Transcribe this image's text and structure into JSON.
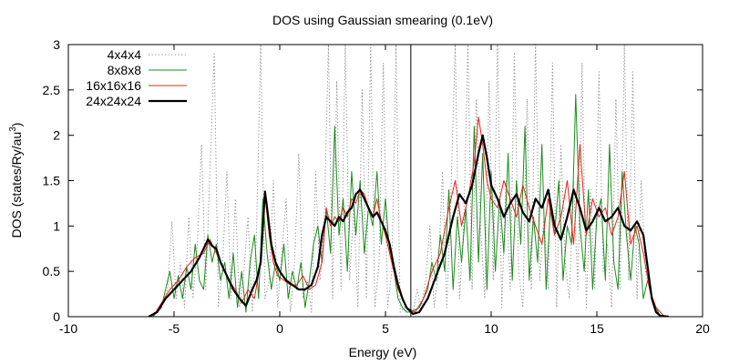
{
  "chart_data": {
    "type": "line",
    "title": "DOS using Gaussian smearing (0.1eV)",
    "xlabel": "Energy (eV)",
    "ylabel": "DOS (states/Ry/au",
    "ylabel_sup": "3",
    "ylabel_end": ")",
    "xlim": [
      -10,
      20
    ],
    "ylim": [
      0,
      3
    ],
    "xticks": [
      -10,
      -5,
      0,
      5,
      10,
      15,
      20
    ],
    "xtick_labels": [
      "-10",
      "-5",
      "0",
      "5",
      "10",
      "15",
      "20"
    ],
    "yticks": [
      0,
      0.5,
      1,
      1.5,
      2,
      2.5,
      3
    ],
    "ytick_labels": [
      "0",
      "0.5",
      "1",
      "1.5",
      "2",
      "2.5",
      "3"
    ],
    "grid": false,
    "legend_position": "top-left",
    "vertical_line_x": 6.2,
    "series": [
      {
        "name": "4x4x4",
        "color": "#888888",
        "style": "dotted",
        "x": [
          -6.2,
          -5.6,
          -5.3,
          -5.1,
          -4.9,
          -4.7,
          -4.5,
          -4.3,
          -4.1,
          -3.9,
          -3.7,
          -3.5,
          -3.3,
          -3.1,
          -2.9,
          -2.7,
          -2.5,
          -2.3,
          -2.1,
          -1.9,
          -1.7,
          -1.5,
          -1.3,
          -1.1,
          -0.9,
          -0.7,
          -0.5,
          -0.3,
          -0.1,
          0.1,
          0.3,
          0.5,
          0.7,
          0.9,
          1.1,
          1.3,
          1.5,
          1.7,
          1.9,
          2.1,
          2.3,
          2.5,
          2.7,
          2.9,
          3.1,
          3.3,
          3.5,
          3.7,
          3.9,
          4.1,
          4.3,
          4.5,
          4.7,
          4.9,
          5.1,
          5.3,
          5.5,
          5.7,
          5.9,
          6.1,
          6.3,
          6.5,
          6.7,
          6.9,
          7.1,
          7.3,
          7.5,
          7.7,
          7.9,
          8.1,
          8.3,
          8.5,
          8.7,
          8.9,
          9.1,
          9.3,
          9.5,
          9.7,
          9.9,
          10.1,
          10.3,
          10.5,
          10.7,
          10.9,
          11.1,
          11.3,
          11.5,
          11.7,
          11.9,
          12.1,
          12.3,
          12.5,
          12.7,
          12.9,
          13.1,
          13.3,
          13.5,
          13.7,
          13.9,
          14.1,
          14.3,
          14.5,
          14.7,
          14.9,
          15.1,
          15.3,
          15.5,
          15.7,
          15.9,
          16.1,
          16.3,
          16.5,
          16.7,
          16.9,
          17.1,
          17.3,
          17.5,
          17.7,
          18.0
        ],
        "y": [
          0,
          0.1,
          0.3,
          1.05,
          0.2,
          0.6,
          0.1,
          1.1,
          0.2,
          0.8,
          1.9,
          0.3,
          1.6,
          2.9,
          0.1,
          0.6,
          1.6,
          0.2,
          1.3,
          0.1,
          0.5,
          1.1,
          0.05,
          0.9,
          3.0,
          0.2,
          0.4,
          1.5,
          0.1,
          0.7,
          1.3,
          0.05,
          0.6,
          1.8,
          0.2,
          0.4,
          0.05,
          1.6,
          0.4,
          1.0,
          3.0,
          0.2,
          2.6,
          0.3,
          3.0,
          0.4,
          1.2,
          0.1,
          2.5,
          0.2,
          3.0,
          0.1,
          0.6,
          2.8,
          0.1,
          0.5,
          3.0,
          0.05,
          0.1,
          0.05,
          0.05,
          0.3,
          0.1,
          0.4,
          1.0,
          0.1,
          0.5,
          1.6,
          0.1,
          1.4,
          3.0,
          0.2,
          1.0,
          3.0,
          0.3,
          2.4,
          1.0,
          0.2,
          2.6,
          0.4,
          3.0,
          0.1,
          1.5,
          0.3,
          2.9,
          0.5,
          0.1,
          2.4,
          0.3,
          3.0,
          0.4,
          1.1,
          0.3,
          2.8,
          0.1,
          1.9,
          0.6,
          0.2,
          1.5,
          0.3,
          2.8,
          0.1,
          1.4,
          0.3,
          2.7,
          0.5,
          0.8,
          0.1,
          2.4,
          0.3,
          3.0,
          0.4,
          2.7,
          0.2,
          1.5,
          0.5,
          0.3,
          0.1,
          0
        ]
      },
      {
        "name": "8x8x8",
        "color": "#1e8a1e",
        "style": "solid",
        "x": [
          -6.0,
          -5.6,
          -5.4,
          -5.2,
          -5.0,
          -4.8,
          -4.6,
          -4.4,
          -4.2,
          -4.0,
          -3.8,
          -3.6,
          -3.4,
          -3.2,
          -3.0,
          -2.8,
          -2.6,
          -2.4,
          -2.2,
          -2.0,
          -1.8,
          -1.6,
          -1.4,
          -1.2,
          -1.0,
          -0.8,
          -0.6,
          -0.4,
          -0.2,
          0.0,
          0.2,
          0.4,
          0.6,
          0.8,
          1.0,
          1.2,
          1.4,
          1.6,
          1.8,
          2.0,
          2.2,
          2.4,
          2.6,
          2.8,
          3.0,
          3.2,
          3.4,
          3.6,
          3.8,
          4.0,
          4.2,
          4.4,
          4.6,
          4.8,
          5.0,
          5.2,
          5.4,
          5.6,
          5.8,
          6.0,
          6.2,
          6.6,
          7.0,
          7.2,
          7.4,
          7.6,
          7.8,
          8.0,
          8.2,
          8.4,
          8.6,
          8.8,
          9.0,
          9.2,
          9.4,
          9.6,
          9.8,
          10.0,
          10.2,
          10.4,
          10.6,
          10.8,
          11.0,
          11.2,
          11.4,
          11.6,
          11.8,
          12.0,
          12.2,
          12.4,
          12.6,
          12.8,
          13.0,
          13.2,
          13.4,
          13.6,
          13.8,
          14.0,
          14.2,
          14.4,
          14.6,
          14.8,
          15.0,
          15.2,
          15.4,
          15.6,
          15.8,
          16.0,
          16.2,
          16.4,
          16.6,
          16.8,
          17.0,
          17.2,
          17.4,
          17.6,
          17.8,
          18.0
        ],
        "y": [
          0,
          0.1,
          0.3,
          0.5,
          0.2,
          0.45,
          0.2,
          0.55,
          0.3,
          0.8,
          0.4,
          0.3,
          0.9,
          0.6,
          0.8,
          0.4,
          0.6,
          0.2,
          0.7,
          0.1,
          0.5,
          0.05,
          0.6,
          0.9,
          0.2,
          1.3,
          0.7,
          0.3,
          0.6,
          0.4,
          0.8,
          0.2,
          0.5,
          0.3,
          0.6,
          0.1,
          0.4,
          0.8,
          1.0,
          0.6,
          1.2,
          0.7,
          2.1,
          0.9,
          1.3,
          0.5,
          1.6,
          0.9,
          1.5,
          0.7,
          1.2,
          1.0,
          1.6,
          0.8,
          1.3,
          0.7,
          0.5,
          0.2,
          0.1,
          0.05,
          0.05,
          0.1,
          0.3,
          0.6,
          0.4,
          0.9,
          0.5,
          1.4,
          0.3,
          1.1,
          0.6,
          1.2,
          0.4,
          2.1,
          0.6,
          1.8,
          0.3,
          1.6,
          0.5,
          1.3,
          0.7,
          1.8,
          0.4,
          1.5,
          0.8,
          2.1,
          0.4,
          1.1,
          0.6,
          1.9,
          0.3,
          1.2,
          0.9,
          1.5,
          0.4,
          1.0,
          0.8,
          2.45,
          1.0,
          0.5,
          1.4,
          0.3,
          1.1,
          1.3,
          0.4,
          1.9,
          0.6,
          0.3,
          1.6,
          0.9,
          0.4,
          1.0,
          0.8,
          0.2,
          0.4,
          0.2,
          0.1,
          0
        ]
      },
      {
        "name": "16x16x16",
        "color": "#e8201a",
        "style": "solid",
        "x": [
          -6.0,
          -5.6,
          -5.2,
          -4.8,
          -4.4,
          -4.0,
          -3.6,
          -3.3,
          -3.0,
          -2.7,
          -2.4,
          -2.1,
          -1.8,
          -1.5,
          -1.2,
          -0.9,
          -0.7,
          -0.5,
          -0.3,
          -0.1,
          0.2,
          0.5,
          0.8,
          1.1,
          1.4,
          1.7,
          2.0,
          2.2,
          2.4,
          2.6,
          2.8,
          3.0,
          3.2,
          3.4,
          3.6,
          3.8,
          4.0,
          4.2,
          4.4,
          4.6,
          4.8,
          5.0,
          5.2,
          5.4,
          5.6,
          5.8,
          6.0,
          6.4,
          6.8,
          7.2,
          7.6,
          8.0,
          8.3,
          8.6,
          8.9,
          9.2,
          9.4,
          9.6,
          9.8,
          10.0,
          10.3,
          10.6,
          10.9,
          11.2,
          11.5,
          11.8,
          12.1,
          12.4,
          12.7,
          13.0,
          13.3,
          13.6,
          13.9,
          14.2,
          14.5,
          14.8,
          15.1,
          15.4,
          15.7,
          16.0,
          16.3,
          16.6,
          16.9,
          17.2,
          17.5,
          17.8,
          18.2
        ],
        "y": [
          0,
          0.15,
          0.3,
          0.4,
          0.55,
          0.65,
          0.7,
          0.85,
          0.7,
          0.55,
          0.4,
          0.3,
          0.15,
          0.3,
          0.2,
          0.6,
          1.35,
          0.9,
          0.6,
          0.45,
          0.4,
          0.35,
          0.35,
          0.45,
          0.3,
          0.35,
          0.6,
          1.2,
          1.0,
          1.1,
          1.05,
          1.2,
          1.1,
          1.3,
          1.25,
          1.4,
          1.35,
          1.2,
          1.1,
          1.3,
          1.05,
          0.9,
          0.7,
          0.5,
          0.3,
          0.2,
          0.1,
          0.05,
          0.2,
          0.5,
          0.7,
          1.2,
          1.5,
          1.0,
          1.3,
          1.7,
          2.2,
          1.9,
          1.5,
          1.3,
          1.2,
          1.5,
          1.3,
          1.1,
          1.45,
          1.2,
          1.0,
          0.8,
          1.3,
          0.9,
          1.1,
          1.5,
          0.8,
          1.9,
          0.9,
          1.3,
          1.1,
          1.2,
          0.9,
          1.1,
          1.6,
          0.8,
          1.0,
          0.7,
          0.3,
          0.1,
          0
        ]
      },
      {
        "name": "24x24x24",
        "color": "#000000",
        "style": "solid",
        "x": [
          -6.2,
          -5.8,
          -5.4,
          -5.0,
          -4.6,
          -4.2,
          -3.8,
          -3.4,
          -3.2,
          -3.0,
          -2.8,
          -2.5,
          -2.2,
          -1.9,
          -1.6,
          -1.3,
          -1.1,
          -0.9,
          -0.7,
          -0.6,
          -0.4,
          -0.2,
          0.0,
          0.3,
          0.6,
          0.9,
          1.2,
          1.5,
          1.8,
          2.0,
          2.2,
          2.4,
          2.6,
          2.8,
          3.0,
          3.2,
          3.4,
          3.6,
          3.8,
          4.0,
          4.2,
          4.4,
          4.6,
          4.8,
          5.0,
          5.2,
          5.4,
          5.6,
          5.8,
          6.0,
          6.3,
          6.6,
          7.0,
          7.4,
          7.8,
          8.2,
          8.5,
          8.8,
          9.1,
          9.4,
          9.6,
          9.8,
          10.0,
          10.3,
          10.6,
          10.9,
          11.2,
          11.5,
          11.8,
          12.1,
          12.4,
          12.7,
          13.0,
          13.3,
          13.6,
          13.9,
          14.2,
          14.5,
          14.8,
          15.1,
          15.4,
          15.7,
          16.0,
          16.3,
          16.6,
          16.9,
          17.2,
          17.4,
          17.6,
          17.8,
          18.0,
          18.4
        ],
        "y": [
          0,
          0.05,
          0.2,
          0.3,
          0.4,
          0.5,
          0.65,
          0.85,
          0.78,
          0.75,
          0.6,
          0.45,
          0.3,
          0.2,
          0.12,
          0.3,
          0.4,
          0.6,
          1.38,
          1.2,
          0.8,
          0.6,
          0.5,
          0.4,
          0.35,
          0.3,
          0.3,
          0.35,
          0.55,
          0.9,
          1.1,
          1.05,
          1.0,
          1.1,
          1.05,
          1.15,
          1.2,
          1.35,
          1.4,
          1.3,
          1.2,
          1.1,
          1.15,
          1.05,
          0.95,
          0.8,
          0.55,
          0.35,
          0.2,
          0.1,
          0.03,
          0.05,
          0.2,
          0.45,
          0.7,
          1.1,
          1.35,
          1.25,
          1.45,
          1.8,
          2.0,
          1.75,
          1.45,
          1.3,
          1.1,
          1.25,
          1.35,
          1.15,
          1.05,
          1.3,
          1.2,
          1.4,
          1.0,
          0.85,
          1.1,
          1.4,
          1.2,
          0.95,
          1.05,
          1.2,
          1.05,
          1.1,
          1.2,
          1.0,
          0.95,
          1.05,
          0.9,
          0.55,
          0.2,
          0.05,
          0.01,
          0
        ]
      }
    ]
  }
}
